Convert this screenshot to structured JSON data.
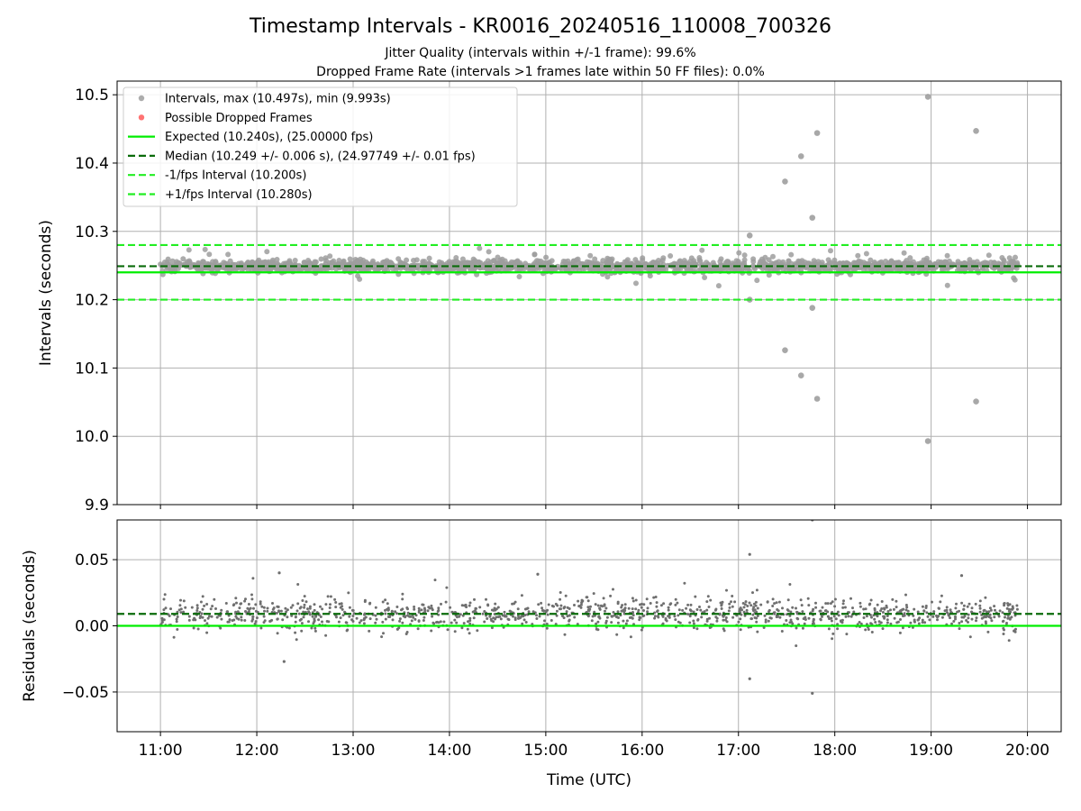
{
  "figure": {
    "title": "Timestamp Intervals - KR0016_20240516_110008_700326",
    "subtitle_1": "Jitter Quality (intervals within +/-1 frame): 99.6%",
    "subtitle_2": "Dropped Frame Rate (intervals >1 frames late within 50 FF files): 0.0%"
  },
  "colors": {
    "interval_points": "#9e9e9e",
    "dropped_points": "#ff5a5a",
    "expected_line": "#00ee00",
    "median_line": "#0a6b0a",
    "fps_interval_lines": "#22ee22",
    "residual_points": "#6f6f6f",
    "grid": "#b0b0b0"
  },
  "chart_data": [
    {
      "id": "intervals",
      "type": "scatter",
      "ylabel": "Intervals (seconds)",
      "xlabel": "",
      "ylim": [
        9.9,
        10.52
      ],
      "yticks": [
        9.9,
        10.0,
        10.1,
        10.2,
        10.3,
        10.4,
        10.5
      ],
      "ytick_labels": [
        "9.9",
        "10.0",
        "10.1",
        "10.2",
        "10.3",
        "10.4",
        "10.5"
      ],
      "xlim": [
        "10:33",
        "20:21"
      ],
      "xticks": [
        "11:00",
        "12:00",
        "13:00",
        "14:00",
        "15:00",
        "16:00",
        "17:00",
        "18:00",
        "19:00",
        "20:00"
      ],
      "grid": true,
      "legend_position": "upper-left",
      "legend": [
        {
          "label": "Intervals, max (10.497s), min (9.993s)",
          "kind": "marker",
          "color": "#9e9e9e"
        },
        {
          "label": "Possible Dropped Frames",
          "kind": "marker",
          "color": "#ff5a5a"
        },
        {
          "label": "Expected (10.240s), (25.00000 fps)",
          "kind": "solid",
          "color": "#00ee00"
        },
        {
          "label": "Median (10.249 +/- 0.006 s), (24.97749 +/- 0.01 fps)",
          "kind": "dashed",
          "color": "#0a6b0a"
        },
        {
          "label": "-1/fps Interval (10.200s)",
          "kind": "dashed",
          "color": "#22ee22"
        },
        {
          "label": "+1/fps Interval (10.280s)",
          "kind": "dashed",
          "color": "#22ee22"
        }
      ],
      "lines": [
        {
          "name": "Expected",
          "y": 10.24,
          "style": "solid",
          "color": "#00ee00"
        },
        {
          "name": "Median",
          "y": 10.249,
          "style": "dashed",
          "color": "#0a6b0a"
        },
        {
          "name": "-1/fps Interval",
          "y": 10.2,
          "style": "dashed",
          "color": "#22ee22"
        },
        {
          "name": "+1/fps Interval",
          "y": 10.28,
          "style": "dashed",
          "color": "#22ee22"
        }
      ],
      "series": [
        {
          "name": "Intervals",
          "time_range": [
            "11:00",
            "19:54"
          ],
          "median": 10.249,
          "std": 0.006,
          "min": 9.993,
          "max": 10.497,
          "notable_points": [
            {
              "t": "17:07",
              "y": 10.294
            },
            {
              "t": "17:07",
              "y": 10.2
            },
            {
              "t": "17:29",
              "y": 10.373
            },
            {
              "t": "17:29",
              "y": 10.126
            },
            {
              "t": "17:39",
              "y": 10.41
            },
            {
              "t": "17:39",
              "y": 10.089
            },
            {
              "t": "17:46",
              "y": 10.32
            },
            {
              "t": "17:46",
              "y": 10.188
            },
            {
              "t": "17:49",
              "y": 10.444
            },
            {
              "t": "17:49",
              "y": 10.055
            },
            {
              "t": "18:58",
              "y": 10.497
            },
            {
              "t": "18:58",
              "y": 9.993
            },
            {
              "t": "19:28",
              "y": 10.447
            },
            {
              "t": "19:28",
              "y": 10.051
            }
          ]
        },
        {
          "name": "Possible Dropped Frames",
          "points": []
        }
      ]
    },
    {
      "id": "residuals",
      "type": "scatter",
      "ylabel": "Residuals (seconds)",
      "xlabel": "Time (UTC)",
      "ylim": [
        -0.08,
        0.08
      ],
      "yticks": [
        -0.05,
        0.0,
        0.05
      ],
      "ytick_labels": [
        "−0.05",
        "0.00",
        "0.05"
      ],
      "xlim": [
        "10:33",
        "20:21"
      ],
      "xticks": [
        "11:00",
        "12:00",
        "13:00",
        "14:00",
        "15:00",
        "16:00",
        "17:00",
        "18:00",
        "19:00",
        "20:00"
      ],
      "grid": true,
      "lines": [
        {
          "name": "Zero",
          "y": 0.0,
          "style": "solid",
          "color": "#00ee00"
        },
        {
          "name": "Median offset",
          "y": 0.009,
          "style": "dashed",
          "color": "#0a6b0a"
        }
      ],
      "series": [
        {
          "name": "Residuals",
          "time_range": [
            "11:00",
            "19:54"
          ],
          "median": 0.009,
          "std": 0.006,
          "notable_points": [
            {
              "t": "17:07",
              "y": 0.054
            },
            {
              "t": "17:07",
              "y": -0.04
            },
            {
              "t": "17:46",
              "y": 0.08
            },
            {
              "t": "17:46",
              "y": -0.051
            },
            {
              "t": "19:19",
              "y": 0.038
            },
            {
              "t": "14:55",
              "y": 0.039
            },
            {
              "t": "12:14",
              "y": 0.04
            },
            {
              "t": "12:17",
              "y": -0.027
            }
          ]
        }
      ]
    }
  ]
}
